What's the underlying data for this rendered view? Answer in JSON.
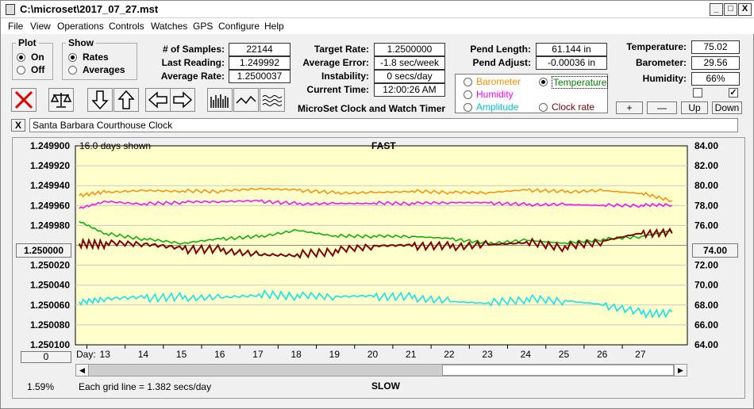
{
  "window": {
    "title": "C:\\microset\\2017_07_27.mst",
    "minimize": "_",
    "maximize": "□",
    "close": "X"
  },
  "menu": [
    "File",
    "View",
    "Operations",
    "Controls",
    "Watches",
    "GPS",
    "Configure",
    "Help"
  ],
  "plot": {
    "label": "Plot",
    "on": "On",
    "off": "Off"
  },
  "show": {
    "label": "Show",
    "rates": "Rates",
    "averages": "Averages"
  },
  "stats": {
    "samples_label": "# of Samples:",
    "samples": "22144",
    "last_label": "Last Reading:",
    "last": "1.249992",
    "avg_label": "Average Rate:",
    "avg": "1.2500037"
  },
  "rates": {
    "target_label": "Target Rate:",
    "target": "1.2500000",
    "err_label": "Average Error:",
    "err": "-1.8 sec/week",
    "inst_label": "Instability:",
    "inst": "0 secs/day",
    "time_label": "Current Time:",
    "time": "12:00:26 AM"
  },
  "app_title": "MicroSet Clock and Watch Timer",
  "pend": {
    "length_label": "Pend Length:",
    "length": "61.144 in",
    "adjust_label": "Pend Adjust:",
    "adjust": "-0.00036 in"
  },
  "env": {
    "temp_label": "Temperature:",
    "temp": "75.02",
    "baro_label": "Barometer:",
    "baro": "29.56",
    "hum_label": "Humidity:",
    "hum": "66%"
  },
  "aux": {
    "barometer": "Barometer",
    "temperature": "Temperature",
    "humidity": "Humidity",
    "amplitude": "Amplitude",
    "clock_rate": "Clock rate"
  },
  "aux_buttons": {
    "plus": "+",
    "minus": "—",
    "up": "Up",
    "down": "Down"
  },
  "clock_name": "Santa Barbara Courthouse Clock",
  "clear": "X",
  "chart": {
    "days_shown": "16.0 days shown",
    "top": "FAST",
    "bottom": "SLOW",
    "center_button": "1.250000",
    "right_button": "74.00",
    "left_bottom_button": "0",
    "grid_note": "Each grid line = 1.382 secs/day",
    "percent": "1.59%",
    "day_label": "Day:"
  },
  "colors": {
    "plot_bg": "#ffffcc",
    "barometer": "#ff8c00",
    "humidity": "#ff00ff",
    "temperature": "#00b000",
    "clock_rate": "#800000",
    "amplitude": "#00e5ee"
  },
  "chart_data": {
    "type": "line",
    "title": "FAST",
    "xlabel": "Day:",
    "ylabel": "",
    "x": [
      12.3,
      13,
      14,
      15,
      16,
      17,
      18,
      19,
      20,
      21,
      22,
      23,
      24,
      25,
      26,
      27,
      27.8
    ],
    "xticks": [
      "13",
      "14",
      "15",
      "16",
      "17",
      "18",
      "19",
      "20",
      "21",
      "22",
      "23",
      "24",
      "25",
      "26",
      "27"
    ],
    "yticks_left": [
      "1.249900",
      "1.249920",
      "1.249940",
      "1.249960",
      "1.249980",
      "1.250000",
      "1.250020",
      "1.250040",
      "1.250060",
      "1.250080",
      "1.250100"
    ],
    "yticks_right": [
      "84.00",
      "82.00",
      "80.00",
      "78.00",
      "76.00",
      "74.00",
      "72.00",
      "70.00",
      "68.00",
      "66.00",
      "64.00"
    ],
    "ylim_right": [
      64,
      84
    ],
    "series": [
      {
        "name": "Barometer",
        "values": [
          79.0,
          79.4,
          79.6,
          79.5,
          79.4,
          79.6,
          79.5,
          79.3,
          79.4,
          79.5,
          79.3,
          79.2,
          79.5,
          79.4,
          79.6,
          79.3,
          78.5
        ]
      },
      {
        "name": "Humidity",
        "values": [
          77.8,
          78.5,
          78.2,
          78.3,
          78.3,
          78.4,
          78.2,
          78.3,
          78.3,
          78.2,
          78.2,
          78.2,
          78.1,
          78.2,
          78.1,
          78.0,
          78.0
        ]
      },
      {
        "name": "Temperature",
        "values": [
          76.5,
          75.2,
          74.6,
          74.1,
          74.6,
          74.9,
          75.6,
          75.0,
          74.9,
          74.8,
          74.6,
          74.2,
          74.6,
          74.3,
          74.6,
          74.8,
          75.4
        ]
      },
      {
        "name": "Clock rate",
        "values": [
          74.2,
          74.1,
          73.9,
          73.5,
          73.6,
          73.3,
          73.2,
          73.4,
          73.7,
          73.8,
          73.9,
          74.3,
          74.5,
          73.8,
          74.2,
          75.0,
          75.2
        ]
      },
      {
        "name": "Amplitude",
        "values": [
          68.1,
          68.4,
          68.6,
          68.8,
          69.0,
          69.2,
          68.9,
          68.6,
          68.7,
          68.8,
          68.6,
          68.4,
          68.6,
          68.2,
          67.8,
          67.2,
          67.3
        ]
      }
    ]
  }
}
